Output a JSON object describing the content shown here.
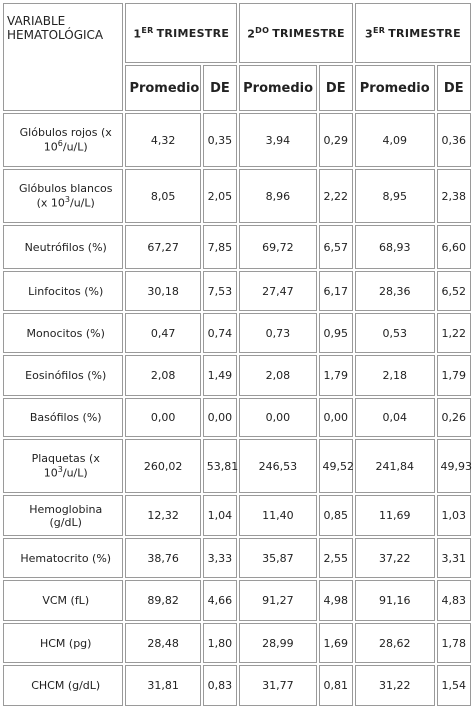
{
  "table": {
    "header": {
      "variable": "VARIABLE HEMATOLÓGICA",
      "trimesters": [
        {
          "pre": "1",
          "sup": "ER",
          "post": "TRIMESTRE"
        },
        {
          "pre": "2",
          "sup": "DO",
          "post": "TRIMESTRE"
        },
        {
          "pre": "3",
          "sup": "ER",
          "post": "TRIMESTRE"
        }
      ],
      "subheaders": [
        "Promedio",
        "DE",
        "Promedio",
        "DE",
        "Promedio",
        "DE"
      ]
    },
    "rows": [
      [
        {
          "pre": "Glóbulos rojos (x 10",
          "sup": "6",
          "post": "/u/L)"
        },
        "4,32",
        "0,35",
        "3,94",
        "0,29",
        "4,09",
        "0,36"
      ],
      [
        {
          "pre": "Glóbulos blancos (x 10",
          "sup": "3",
          "post": "/u/L)"
        },
        "8,05",
        "2,05",
        "8,96",
        "2,22",
        "8,95",
        "2,38"
      ],
      [
        "Neutrófilos (%)",
        "67,27",
        "7,85",
        "69,72",
        "6,57",
        "68,93",
        "6,60"
      ],
      [
        "Linfocitos (%)",
        "30,18",
        "7,53",
        "27,47",
        "6,17",
        "28,36",
        "6,52"
      ],
      [
        "Monocitos (%)",
        "0,47",
        "0,74",
        "0,73",
        "0,95",
        "0,53",
        "1,22"
      ],
      [
        "Eosinófilos (%)",
        "2,08",
        "1,49",
        "2,08",
        "1,79",
        "2,18",
        "1,79"
      ],
      [
        "Basófilos (%)",
        "0,00",
        "0,00",
        "0,00",
        "0,00",
        "0,04",
        "0,26"
      ],
      [
        {
          "pre": "Plaquetas (x 10",
          "sup": "3",
          "post": "/u/L)"
        },
        "260,02",
        "53,81",
        "246,53",
        "49,52",
        "241,84",
        "49,93"
      ],
      [
        "Hemoglobina (g/dL)",
        "12,32",
        "1,04",
        "11,40",
        "0,85",
        "11,69",
        "1,03"
      ],
      [
        "Hematocrito (%)",
        "38,76",
        "3,33",
        "35,87",
        "2,55",
        "37,22",
        "3,31"
      ],
      [
        "VCM (fL)",
        "89,82",
        "4,66",
        "91,27",
        "4,98",
        "91,16",
        "4,83"
      ],
      [
        "HCM (pg)",
        "28,48",
        "1,80",
        "28,99",
        "1,69",
        "28,62",
        "1,78"
      ],
      [
        "CHCM (g/dL)",
        "31,81",
        "0,83",
        "31,77",
        "0,81",
        "31,22",
        "1,54"
      ]
    ]
  }
}
